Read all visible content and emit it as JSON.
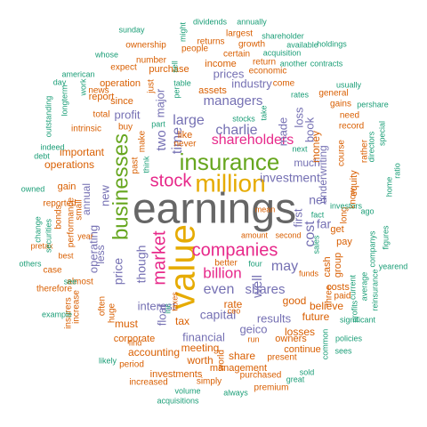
{
  "colors": {
    "gray": "#666666",
    "orange": "#d95f02",
    "green": "#1b9e77",
    "purple": "#7570b3",
    "magenta": "#e7298a",
    "lime": "#66a61e",
    "gold": "#e6ab02"
  },
  "words": [
    {
      "text": "earnings",
      "color": "gray"
    },
    {
      "text": "value",
      "color": "gold"
    },
    {
      "text": "million",
      "color": "gold"
    },
    {
      "text": "insurance",
      "color": "lime"
    },
    {
      "text": "businesses",
      "color": "lime"
    },
    {
      "text": "companies",
      "color": "magenta"
    },
    {
      "text": "stock",
      "color": "magenta"
    },
    {
      "text": "market",
      "color": "magenta"
    },
    {
      "text": "billion",
      "color": "magenta"
    },
    {
      "text": "shareholders",
      "color": "magenta"
    },
    {
      "text": "charlie",
      "color": "purple"
    },
    {
      "text": "large",
      "color": "purple"
    },
    {
      "text": "managers",
      "color": "purple"
    },
    {
      "text": "even",
      "color": "purple"
    },
    {
      "text": "may",
      "color": "purple"
    },
    {
      "text": "shares",
      "color": "purple"
    },
    {
      "text": "capital",
      "color": "purple"
    },
    {
      "text": "well",
      "color": "purple"
    },
    {
      "text": "investment",
      "color": "purple"
    },
    {
      "text": "cost",
      "color": "purple"
    },
    {
      "text": "two",
      "color": "purple"
    },
    {
      "text": "time",
      "color": "purple"
    },
    {
      "text": "though",
      "color": "purple"
    },
    {
      "text": "price",
      "color": "purple"
    },
    {
      "text": "operating",
      "color": "purple"
    },
    {
      "text": "new",
      "color": "purple"
    },
    {
      "text": "made",
      "color": "purple"
    },
    {
      "text": "net",
      "color": "purple"
    },
    {
      "text": "far",
      "color": "purple"
    },
    {
      "text": "loss",
      "color": "purple"
    },
    {
      "text": "major",
      "color": "purple"
    },
    {
      "text": "interest",
      "color": "purple"
    },
    {
      "text": "financial",
      "color": "purple"
    },
    {
      "text": "geico",
      "color": "purple"
    },
    {
      "text": "results",
      "color": "purple"
    },
    {
      "text": "float",
      "color": "purple"
    },
    {
      "text": "first",
      "color": "purple"
    },
    {
      "text": "book",
      "color": "purple"
    },
    {
      "text": "industry",
      "color": "purple"
    },
    {
      "text": "prices",
      "color": "purple"
    },
    {
      "text": "profit",
      "color": "purple"
    },
    {
      "text": "underwriting",
      "color": "purple"
    },
    {
      "text": "much",
      "color": "purple"
    },
    {
      "text": "less",
      "color": "purple"
    },
    {
      "text": "annual",
      "color": "purple"
    },
    {
      "text": "money",
      "color": "orange"
    },
    {
      "text": "important",
      "color": "orange"
    },
    {
      "text": "operations",
      "color": "orange"
    },
    {
      "text": "tax",
      "color": "orange"
    },
    {
      "text": "rate",
      "color": "orange"
    },
    {
      "text": "good",
      "color": "orange"
    },
    {
      "text": "believe",
      "color": "orange"
    },
    {
      "text": "losses",
      "color": "orange"
    },
    {
      "text": "future",
      "color": "orange"
    },
    {
      "text": "meeting",
      "color": "orange"
    },
    {
      "text": "accounting",
      "color": "orange"
    },
    {
      "text": "share",
      "color": "orange"
    },
    {
      "text": "worth",
      "color": "orange"
    },
    {
      "text": "must",
      "color": "orange"
    },
    {
      "text": "investments",
      "color": "orange"
    },
    {
      "text": "management",
      "color": "orange"
    },
    {
      "text": "corporate",
      "color": "orange"
    },
    {
      "text": "purchase",
      "color": "orange"
    },
    {
      "text": "income",
      "color": "orange"
    },
    {
      "text": "operation",
      "color": "orange"
    },
    {
      "text": "since",
      "color": "orange"
    },
    {
      "text": "report",
      "color": "orange"
    },
    {
      "text": "total",
      "color": "orange"
    },
    {
      "text": "gain",
      "color": "orange"
    },
    {
      "text": "continue",
      "color": "orange"
    },
    {
      "text": "owners",
      "color": "orange"
    },
    {
      "text": "costs",
      "color": "orange"
    },
    {
      "text": "get",
      "color": "orange"
    },
    {
      "text": "pay",
      "color": "orange"
    },
    {
      "text": "group",
      "color": "orange"
    },
    {
      "text": "cash",
      "color": "orange"
    },
    {
      "text": "three",
      "color": "orange"
    },
    {
      "text": "paid",
      "color": "orange"
    },
    {
      "text": "equity",
      "color": "orange"
    },
    {
      "text": "long",
      "color": "orange"
    },
    {
      "text": "course",
      "color": "orange"
    },
    {
      "text": "know",
      "color": "orange"
    },
    {
      "text": "rather",
      "color": "orange"
    },
    {
      "text": "record",
      "color": "orange"
    },
    {
      "text": "need",
      "color": "orange"
    },
    {
      "text": "gains",
      "color": "orange"
    },
    {
      "text": "general",
      "color": "orange"
    },
    {
      "text": "come",
      "color": "orange"
    },
    {
      "text": "return",
      "color": "orange"
    },
    {
      "text": "economic",
      "color": "orange"
    },
    {
      "text": "assets",
      "color": "orange"
    },
    {
      "text": "like",
      "color": "orange"
    },
    {
      "text": "never",
      "color": "orange"
    },
    {
      "text": "buy",
      "color": "orange"
    },
    {
      "text": "make",
      "color": "orange"
    },
    {
      "text": "past",
      "color": "orange"
    },
    {
      "text": "just",
      "color": "orange"
    },
    {
      "text": "intrinsic",
      "color": "orange"
    },
    {
      "text": "news",
      "color": "orange"
    },
    {
      "text": "expect",
      "color": "orange"
    },
    {
      "text": "number",
      "color": "orange"
    },
    {
      "text": "people",
      "color": "orange"
    },
    {
      "text": "certain",
      "color": "orange"
    },
    {
      "text": "growth",
      "color": "orange"
    },
    {
      "text": "returns",
      "color": "orange"
    },
    {
      "text": "ownership",
      "color": "orange"
    },
    {
      "text": "largest",
      "color": "orange"
    },
    {
      "text": "bonds",
      "color": "orange"
    },
    {
      "text": "performance",
      "color": "orange"
    },
    {
      "text": "reported",
      "color": "orange"
    },
    {
      "text": "small",
      "color": "orange"
    },
    {
      "text": "increase",
      "color": "orange"
    },
    {
      "text": "insurers",
      "color": "orange"
    },
    {
      "text": "almost",
      "color": "orange"
    },
    {
      "text": "often",
      "color": "orange"
    },
    {
      "text": "huge",
      "color": "orange"
    },
    {
      "text": "find",
      "color": "orange"
    },
    {
      "text": "period",
      "color": "orange"
    },
    {
      "text": "increased",
      "color": "orange"
    },
    {
      "text": "simply",
      "color": "orange"
    },
    {
      "text": "world",
      "color": "orange"
    },
    {
      "text": "present",
      "color": "orange"
    },
    {
      "text": "purchased",
      "color": "orange"
    },
    {
      "text": "premium",
      "color": "orange"
    },
    {
      "text": "better",
      "color": "orange"
    },
    {
      "text": "amount",
      "color": "orange"
    },
    {
      "text": "second",
      "color": "orange"
    },
    {
      "text": "funds",
      "color": "orange"
    },
    {
      "text": "therefore",
      "color": "orange"
    },
    {
      "text": "case",
      "color": "orange"
    },
    {
      "text": "pretax",
      "color": "orange"
    },
    {
      "text": "best",
      "color": "orange"
    },
    {
      "text": "year",
      "color": "orange"
    },
    {
      "text": "ceo",
      "color": "orange"
    },
    {
      "text": "taxes",
      "color": "orange"
    },
    {
      "text": "run",
      "color": "orange"
    },
    {
      "text": "mean",
      "color": "orange"
    },
    {
      "text": "directors",
      "color": "green"
    },
    {
      "text": "special",
      "color": "green"
    },
    {
      "text": "ratio",
      "color": "green"
    },
    {
      "text": "home",
      "color": "green"
    },
    {
      "text": "figures",
      "color": "green"
    },
    {
      "text": "yearend",
      "color": "green"
    },
    {
      "text": "reinsurance",
      "color": "green"
    },
    {
      "text": "companys",
      "color": "green"
    },
    {
      "text": "average",
      "color": "green"
    },
    {
      "text": "current",
      "color": "green"
    },
    {
      "text": "profits",
      "color": "green"
    },
    {
      "text": "significant",
      "color": "green"
    },
    {
      "text": "policies",
      "color": "green"
    },
    {
      "text": "sees",
      "color": "green"
    },
    {
      "text": "common",
      "color": "green"
    },
    {
      "text": "sold",
      "color": "green"
    },
    {
      "text": "great",
      "color": "green"
    },
    {
      "text": "always",
      "color": "green"
    },
    {
      "text": "acquisitions",
      "color": "green"
    },
    {
      "text": "volume",
      "color": "green"
    },
    {
      "text": "likely",
      "color": "green"
    },
    {
      "text": "example",
      "color": "green"
    },
    {
      "text": "see",
      "color": "green"
    },
    {
      "text": "others",
      "color": "green"
    },
    {
      "text": "securities",
      "color": "green"
    },
    {
      "text": "change",
      "color": "green"
    },
    {
      "text": "owned",
      "color": "green"
    },
    {
      "text": "debt",
      "color": "green"
    },
    {
      "text": "indeed",
      "color": "green"
    },
    {
      "text": "outstanding",
      "color": "green"
    },
    {
      "text": "longterm",
      "color": "green"
    },
    {
      "text": "day",
      "color": "green"
    },
    {
      "text": "american",
      "color": "green"
    },
    {
      "text": "work",
      "color": "green"
    },
    {
      "text": "whose",
      "color": "green"
    },
    {
      "text": "sunday",
      "color": "green"
    },
    {
      "text": "might",
      "color": "green"
    },
    {
      "text": "sell",
      "color": "green"
    },
    {
      "text": "dividends",
      "color": "green"
    },
    {
      "text": "annually",
      "color": "green"
    },
    {
      "text": "shareholder",
      "color": "green"
    },
    {
      "text": "available",
      "color": "green"
    },
    {
      "text": "acquisition",
      "color": "green"
    },
    {
      "text": "another",
      "color": "green"
    },
    {
      "text": "contracts",
      "color": "green"
    },
    {
      "text": "holdings",
      "color": "green"
    },
    {
      "text": "usually",
      "color": "green"
    },
    {
      "text": "pershare",
      "color": "green"
    },
    {
      "text": "rates",
      "color": "green"
    },
    {
      "text": "per",
      "color": "green"
    },
    {
      "text": "table",
      "color": "green"
    },
    {
      "text": "part",
      "color": "green"
    },
    {
      "text": "stocks",
      "color": "green"
    },
    {
      "text": "take",
      "color": "green"
    },
    {
      "text": "next",
      "color": "green"
    },
    {
      "text": "think",
      "color": "green"
    },
    {
      "text": "fact",
      "color": "green"
    },
    {
      "text": "sales",
      "color": "green"
    },
    {
      "text": "investors",
      "color": "green"
    },
    {
      "text": "ago",
      "color": "green"
    },
    {
      "text": "four",
      "color": "green"
    },
    {
      "text": "inc",
      "color": "green"
    }
  ]
}
